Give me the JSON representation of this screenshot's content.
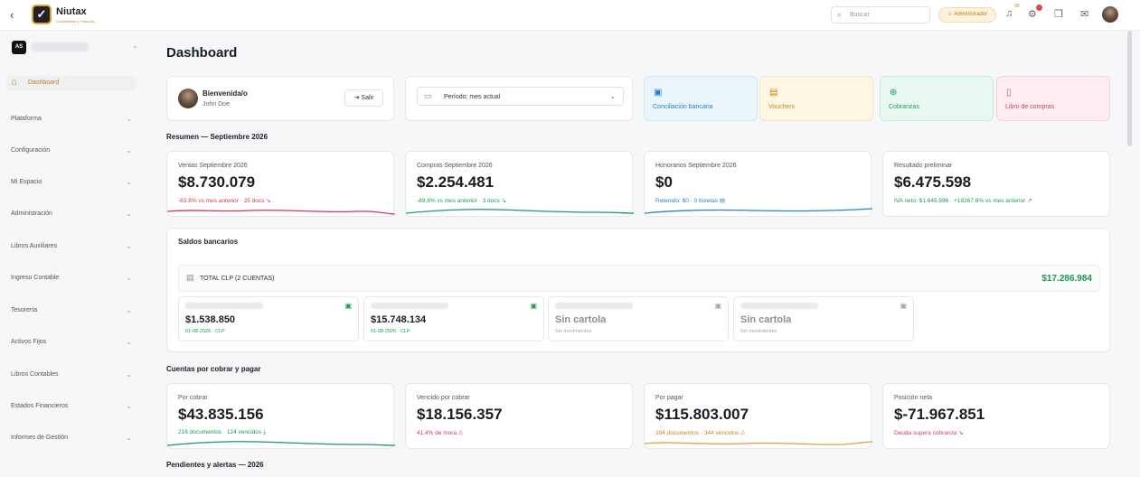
{
  "topbar": {
    "back_icon": "‹",
    "brand_name": "Niutax",
    "brand_tagline": "Contabilidad y Finanzas",
    "search_placeholder": "Buscar",
    "role_label": "Administrador",
    "notifications_count": "30",
    "accent": "#c27d20"
  },
  "sidebar": {
    "workspace_initials": "AS",
    "active_item": "Dashboard",
    "items": [
      "Plataforma",
      "Configuración",
      "Mi Espacio",
      "Administración",
      "Libros Auxiliares",
      "Ingreso Contable",
      "Tesorería",
      "Activos Fijos",
      "Libros Contables",
      "Estados Financieros",
      "Informes de Gestión"
    ]
  },
  "main": {
    "title": "Dashboard",
    "welcome": {
      "title": "Bienvenida/o",
      "user": "John Doe",
      "logout_label": "Salir"
    },
    "period": {
      "label": "Período: mes actual"
    },
    "quick_actions": [
      {
        "label": "Conciliación bancaria",
        "color": "#2b7fc4",
        "bg": "#eaf6fb",
        "border": "#cde9f3"
      },
      {
        "label": "Vouchers",
        "color": "#c08a1e",
        "bg": "#fdf6e3",
        "border": "#f3e5bd"
      },
      {
        "label": "Cobranzas",
        "color": "#1f9a5e",
        "bg": "#e9f8f1",
        "border": "#c8ecdb"
      },
      {
        "label": "Libro de compras",
        "color": "#c24864",
        "bg": "#fdedf1",
        "border": "#f5d3dc"
      }
    ],
    "resumen": {
      "title": "Resumen — Septiembre 2026",
      "cards": [
        {
          "label": "Ventas Septiembre 2026",
          "value": "$8.730.079",
          "sub": "-63.8% vs mes anterior · 25 docs ↘",
          "sub_color": "#d23a4f",
          "line_color": "#d23a4f"
        },
        {
          "label": "Compras Septiembre 2026",
          "value": "$2.254.481",
          "sub": "-89.8% vs mes anterior · 3 docs ↘",
          "sub_color": "#1c9a55",
          "line_color": "#1c9a55"
        },
        {
          "label": "Honorarios Septiembre 2026",
          "value": "$0",
          "sub": "Retenido: $0 · 0 boletas ▤",
          "sub_color": "#2b7fc4",
          "line_color": "#2b7fc4"
        },
        {
          "label": "Resultado preliminar",
          "value": "$6.475.598",
          "sub": "IVA neto: $1.645.596 · +19267.6% vs mes anterior ↗",
          "sub_color": "#1c9a55",
          "line_color": ""
        }
      ]
    },
    "saldos": {
      "title": "Saldos bancarios",
      "total_label": "TOTAL CLP (2 CUENTAS)",
      "total_amount": "$17.286.984",
      "accounts": [
        {
          "amount": "$1.538.850",
          "sub": "01-08-2026 · CLP",
          "amount_color": "#1a1d21",
          "sub_color": "#1c9a55",
          "icon_color": "#1c9a55"
        },
        {
          "amount": "$15.748.134",
          "sub": "01-08-2026 · CLP",
          "amount_color": "#1a1d21",
          "sub_color": "#1c9a55",
          "icon_color": "#1c9a55"
        },
        {
          "amount": "Sin cartola",
          "sub": "Sin movimientos",
          "amount_color": "#8a8f96",
          "sub_color": "#a0a4aa",
          "icon_color": "#a0a4aa"
        },
        {
          "amount": "Sin cartola",
          "sub": "Sin movimientos",
          "amount_color": "#8a8f96",
          "sub_color": "#a0a4aa",
          "icon_color": "#a0a4aa"
        }
      ]
    },
    "cuentas": {
      "title": "Cuentas por cobrar y pagar",
      "cards": [
        {
          "label": "Por cobrar",
          "value": "$43.835.156",
          "sub": "216 documentos · 124 vencidos ⤓",
          "sub_color": "#1c9a55",
          "line_color": "#1c9a55"
        },
        {
          "label": "Vencido por cobrar",
          "value": "$18.156.357",
          "sub": "41.4% de mora ⚠",
          "sub_color": "#d23a4f",
          "line_color": ""
        },
        {
          "label": "Por pagar",
          "value": "$115.803.007",
          "sub": "394 documentos · 344 vencidos ⚠",
          "sub_color": "#c08a1e",
          "line_color": "#e0a33a"
        },
        {
          "label": "Posición neta",
          "value": "$-71.967.851",
          "sub": "Deuda supera cobranza ↘",
          "sub_color": "#d23a4f",
          "line_color": ""
        }
      ]
    },
    "pendientes": {
      "title": "Pendientes y alertas — 2026"
    }
  }
}
